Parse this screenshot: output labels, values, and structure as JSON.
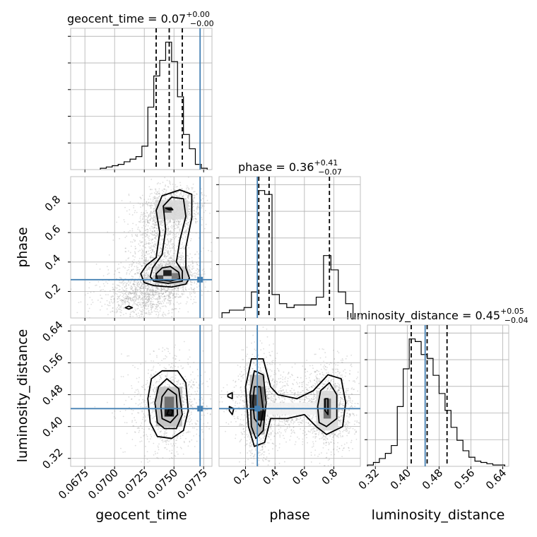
{
  "chart_data": {
    "type": "corner",
    "parameters": [
      "geocent_time",
      "phase",
      "luminosity_distance"
    ],
    "titles": [
      {
        "param": "geocent_time",
        "median": "0.07",
        "plus": "+0.00",
        "minus": "−0.00"
      },
      {
        "param": "phase",
        "median": "0.36",
        "plus": "+0.41",
        "minus": "−0.07"
      },
      {
        "param": "luminosity_distance",
        "median": "0.45",
        "plus": "+0.05",
        "minus": "−0.04"
      }
    ],
    "axis_labels": {
      "geocent_time": "geocent_time",
      "phase": "phase",
      "luminosity_distance": "luminosity_distance"
    },
    "ranges": {
      "geocent_time": [
        0.0663,
        0.0782
      ],
      "phase": [
        0.02,
        0.98
      ],
      "luminosity_distance": [
        0.3,
        0.655
      ]
    },
    "ticks": {
      "geocent_time": [
        "0.0675",
        "0.0700",
        "0.0725",
        "0.0750",
        "0.0775"
      ],
      "phase": [
        "0.2",
        "0.4",
        "0.6",
        "0.8"
      ],
      "luminosity_distance": [
        "0.32",
        "0.40",
        "0.48",
        "0.56",
        "0.64"
      ]
    },
    "tick_values": {
      "geocent_time": [
        0.0675,
        0.07,
        0.0725,
        0.075,
        0.0775
      ],
      "phase": [
        0.2,
        0.4,
        0.6,
        0.8
      ],
      "luminosity_distance": [
        0.32,
        0.4,
        0.48,
        0.56,
        0.64
      ]
    },
    "truths": {
      "geocent_time": 0.0772,
      "phase": 0.28,
      "luminosity_distance": 0.445
    },
    "quantiles": {
      "geocent_time": [
        0.0735,
        0.0746,
        0.0757
      ],
      "phase": [
        0.29,
        0.36,
        0.77
      ],
      "luminosity_distance": [
        0.41,
        0.45,
        0.5
      ]
    },
    "histograms": {
      "geocent_time": {
        "edges": [
          0.0688,
          0.0693,
          0.0698,
          0.0703,
          0.0708,
          0.0713,
          0.0718,
          0.0723,
          0.0728,
          0.0733,
          0.0738,
          0.0743,
          0.0748,
          0.0753,
          0.0758,
          0.0763,
          0.0768,
          0.0773,
          0.0778
        ],
        "counts": [
          0.01,
          0.02,
          0.03,
          0.04,
          0.06,
          0.08,
          0.1,
          0.18,
          0.48,
          0.72,
          0.84,
          0.98,
          0.83,
          0.56,
          0.27,
          0.16,
          0.04,
          0.01
        ]
      },
      "phase": {
        "edges": [
          0.04,
          0.09,
          0.14,
          0.19,
          0.24,
          0.28,
          0.33,
          0.38,
          0.43,
          0.48,
          0.53,
          0.58,
          0.63,
          0.68,
          0.73,
          0.78,
          0.83,
          0.88,
          0.93
        ],
        "counts": [
          0.04,
          0.06,
          0.06,
          0.08,
          0.2,
          0.98,
          0.95,
          0.18,
          0.11,
          0.08,
          0.1,
          0.1,
          0.1,
          0.16,
          0.48,
          0.37,
          0.2,
          0.11
        ]
      },
      "luminosity_distance": {
        "edges": [
          0.3,
          0.315,
          0.33,
          0.345,
          0.36,
          0.375,
          0.39,
          0.405,
          0.42,
          0.435,
          0.45,
          0.465,
          0.48,
          0.495,
          0.51,
          0.525,
          0.54,
          0.555,
          0.57,
          0.585,
          0.6,
          0.615,
          0.63,
          0.645
        ],
        "counts": [
          0.01,
          0.03,
          0.06,
          0.1,
          0.16,
          0.46,
          0.75,
          0.98,
          0.96,
          0.86,
          0.83,
          0.7,
          0.56,
          0.43,
          0.3,
          0.2,
          0.12,
          0.07,
          0.04,
          0.03,
          0.02,
          0.01,
          0.01
        ]
      }
    },
    "pairs": [
      {
        "x": "geocent_time",
        "y": "phase",
        "density_blocks": [
          {
            "x0": 0.0741,
            "x1": 0.0748,
            "y0": 0.305,
            "y1": 0.345,
            "level": 0.95
          },
          {
            "x0": 0.0734,
            "x1": 0.0741,
            "y0": 0.27,
            "y1": 0.31,
            "level": 0.75
          },
          {
            "x0": 0.0748,
            "x1": 0.0755,
            "y0": 0.285,
            "y1": 0.325,
            "level": 0.55
          },
          {
            "x0": 0.0741,
            "x1": 0.0748,
            "y0": 0.735,
            "y1": 0.775,
            "level": 0.6
          },
          {
            "x0": 0.0734,
            "x1": 0.0762,
            "y0": 0.25,
            "y1": 0.37,
            "level": 0.2
          },
          {
            "x0": 0.0734,
            "x1": 0.0762,
            "y0": 0.69,
            "y1": 0.82,
            "level": 0.15
          }
        ],
        "contours": [
          [
            [
              0.0725,
              0.26
            ],
            [
              0.0733,
              0.24
            ],
            [
              0.0748,
              0.23
            ],
            [
              0.076,
              0.25
            ],
            [
              0.0763,
              0.29
            ],
            [
              0.076,
              0.36
            ],
            [
              0.076,
              0.5
            ],
            [
              0.0765,
              0.7
            ],
            [
              0.0765,
              0.86
            ],
            [
              0.0755,
              0.89
            ],
            [
              0.074,
              0.85
            ],
            [
              0.0735,
              0.75
            ],
            [
              0.0738,
              0.6
            ],
            [
              0.0735,
              0.43
            ],
            [
              0.0727,
              0.38
            ],
            [
              0.0722,
              0.32
            ],
            [
              0.0725,
              0.26
            ]
          ],
          [
            [
              0.0733,
              0.27
            ],
            [
              0.0745,
              0.255
            ],
            [
              0.0757,
              0.27
            ],
            [
              0.0757,
              0.34
            ],
            [
              0.0752,
              0.4
            ],
            [
              0.0755,
              0.55
            ],
            [
              0.076,
              0.71
            ],
            [
              0.0758,
              0.83
            ],
            [
              0.0748,
              0.84
            ],
            [
              0.0741,
              0.78
            ],
            [
              0.0743,
              0.62
            ],
            [
              0.074,
              0.45
            ],
            [
              0.0732,
              0.36
            ],
            [
              0.073,
              0.3
            ],
            [
              0.0733,
              0.27
            ]
          ],
          [
            [
              0.0736,
              0.28
            ],
            [
              0.0747,
              0.27
            ],
            [
              0.0755,
              0.285
            ],
            [
              0.0754,
              0.33
            ],
            [
              0.0747,
              0.37
            ],
            [
              0.074,
              0.36
            ],
            [
              0.0735,
              0.32
            ],
            [
              0.0736,
              0.28
            ]
          ],
          [
            [
              0.0743,
              0.765
            ],
            [
              0.0746,
              0.755
            ],
            [
              0.0749,
              0.755
            ],
            [
              0.0748,
              0.765
            ],
            [
              0.0743,
              0.765
            ]
          ],
          [
            [
              0.0709,
              0.09
            ],
            [
              0.0712,
              0.08
            ],
            [
              0.0715,
              0.09
            ],
            [
              0.0712,
              0.1
            ],
            [
              0.0709,
              0.09
            ]
          ]
        ],
        "scatter_center": [
          [
            0.0746,
            0.3,
            0.001,
            0.05
          ],
          [
            0.0749,
            0.77,
            0.0009,
            0.05
          ],
          [
            0.0738,
            0.5,
            0.001,
            0.12
          ],
          [
            0.0722,
            0.17,
            0.0012,
            0.06
          ]
        ]
      },
      {
        "x": "geocent_time",
        "y": "luminosity_distance",
        "density_blocks": [
          {
            "x0": 0.0742,
            "x1": 0.075,
            "y0": 0.425,
            "y1": 0.445,
            "level": 0.95
          },
          {
            "x0": 0.0742,
            "x1": 0.075,
            "y0": 0.445,
            "y1": 0.475,
            "level": 0.6
          },
          {
            "x0": 0.0735,
            "x1": 0.0757,
            "y0": 0.4,
            "y1": 0.5,
            "level": 0.25
          }
        ],
        "contours": [
          [
            [
              0.073,
              0.41
            ],
            [
              0.0736,
              0.375
            ],
            [
              0.0748,
              0.37
            ],
            [
              0.0758,
              0.39
            ],
            [
              0.0762,
              0.44
            ],
            [
              0.076,
              0.51
            ],
            [
              0.0753,
              0.54
            ],
            [
              0.074,
              0.54
            ],
            [
              0.0731,
              0.52
            ],
            [
              0.0728,
              0.47
            ],
            [
              0.073,
              0.41
            ]
          ],
          [
            [
              0.0736,
              0.41
            ],
            [
              0.0742,
              0.395
            ],
            [
              0.0752,
              0.395
            ],
            [
              0.0757,
              0.43
            ],
            [
              0.0754,
              0.495
            ],
            [
              0.0744,
              0.52
            ],
            [
              0.0737,
              0.5
            ],
            [
              0.0734,
              0.46
            ],
            [
              0.0736,
              0.41
            ]
          ],
          [
            [
              0.074,
              0.42
            ],
            [
              0.0747,
              0.41
            ],
            [
              0.0753,
              0.43
            ],
            [
              0.0752,
              0.48
            ],
            [
              0.0745,
              0.495
            ],
            [
              0.074,
              0.475
            ],
            [
              0.0739,
              0.45
            ],
            [
              0.074,
              0.42
            ]
          ],
          [
            [
              0.0744,
              0.43
            ],
            [
              0.0748,
              0.428
            ],
            [
              0.0749,
              0.44
            ],
            [
              0.0746,
              0.445
            ],
            [
              0.0744,
              0.43
            ]
          ]
        ],
        "scatter_center": [
          [
            0.0746,
            0.45,
            0.0012,
            0.045
          ]
        ]
      },
      {
        "x": "phase",
        "y": "luminosity_distance",
        "density_blocks": [
          {
            "x0": 0.28,
            "x1": 0.33,
            "y0": 0.415,
            "y1": 0.44,
            "level": 0.95
          },
          {
            "x0": 0.23,
            "x1": 0.28,
            "y0": 0.44,
            "y1": 0.48,
            "level": 0.8
          },
          {
            "x0": 0.28,
            "x1": 0.33,
            "y0": 0.44,
            "y1": 0.5,
            "level": 0.55
          },
          {
            "x0": 0.23,
            "x1": 0.33,
            "y0": 0.38,
            "y1": 0.53,
            "level": 0.3
          },
          {
            "x0": 0.73,
            "x1": 0.78,
            "y0": 0.42,
            "y1": 0.47,
            "level": 0.6
          },
          {
            "x0": 0.68,
            "x1": 0.83,
            "y0": 0.39,
            "y1": 0.49,
            "level": 0.15
          },
          {
            "x0": 0.33,
            "x1": 0.68,
            "y0": 0.43,
            "y1": 0.46,
            "level": 0.05
          }
        ],
        "contours": [
          [
            [
              0.22,
              0.4
            ],
            [
              0.26,
              0.35
            ],
            [
              0.33,
              0.36
            ],
            [
              0.37,
              0.42
            ],
            [
              0.48,
              0.42
            ],
            [
              0.6,
              0.43
            ],
            [
              0.68,
              0.4
            ],
            [
              0.75,
              0.38
            ],
            [
              0.86,
              0.4
            ],
            [
              0.88,
              0.46
            ],
            [
              0.85,
              0.52
            ],
            [
              0.76,
              0.53
            ],
            [
              0.66,
              0.49
            ],
            [
              0.55,
              0.47
            ],
            [
              0.42,
              0.48
            ],
            [
              0.37,
              0.5
            ],
            [
              0.32,
              0.57
            ],
            [
              0.24,
              0.57
            ],
            [
              0.2,
              0.5
            ],
            [
              0.22,
              0.4
            ]
          ],
          [
            [
              0.24,
              0.4
            ],
            [
              0.27,
              0.37
            ],
            [
              0.32,
              0.39
            ],
            [
              0.34,
              0.46
            ],
            [
              0.32,
              0.53
            ],
            [
              0.26,
              0.54
            ],
            [
              0.23,
              0.48
            ],
            [
              0.24,
              0.4
            ]
          ],
          [
            [
              0.7,
              0.41
            ],
            [
              0.75,
              0.4
            ],
            [
              0.82,
              0.42
            ],
            [
              0.82,
              0.48
            ],
            [
              0.77,
              0.51
            ],
            [
              0.71,
              0.49
            ],
            [
              0.69,
              0.45
            ],
            [
              0.7,
              0.41
            ]
          ],
          [
            [
              0.26,
              0.42
            ],
            [
              0.3,
              0.4
            ],
            [
              0.32,
              0.44
            ],
            [
              0.3,
              0.5
            ],
            [
              0.26,
              0.5
            ],
            [
              0.25,
              0.46
            ],
            [
              0.26,
              0.42
            ]
          ],
          [
            [
              0.74,
              0.44
            ],
            [
              0.76,
              0.43
            ],
            [
              0.76,
              0.47
            ],
            [
              0.74,
              0.47
            ],
            [
              0.74,
              0.44
            ]
          ],
          [
            [
              0.08,
              0.475
            ],
            [
              0.11,
              0.47
            ],
            [
              0.11,
              0.485
            ],
            [
              0.08,
              0.48
            ],
            [
              0.08,
              0.475
            ]
          ],
          [
            [
              0.09,
              0.44
            ],
            [
              0.11,
              0.43
            ],
            [
              0.12,
              0.445
            ],
            [
              0.09,
              0.45
            ],
            [
              0.09,
              0.44
            ]
          ]
        ],
        "scatter_center": [
          [
            0.29,
            0.45,
            0.05,
            0.05
          ],
          [
            0.77,
            0.45,
            0.06,
            0.04
          ],
          [
            0.55,
            0.45,
            0.15,
            0.03
          ]
        ]
      }
    ],
    "colors": {
      "truth": "#4682b4",
      "line": "#000000",
      "scatter": "#9e9e9e",
      "grid": "#b0b0b0"
    }
  }
}
